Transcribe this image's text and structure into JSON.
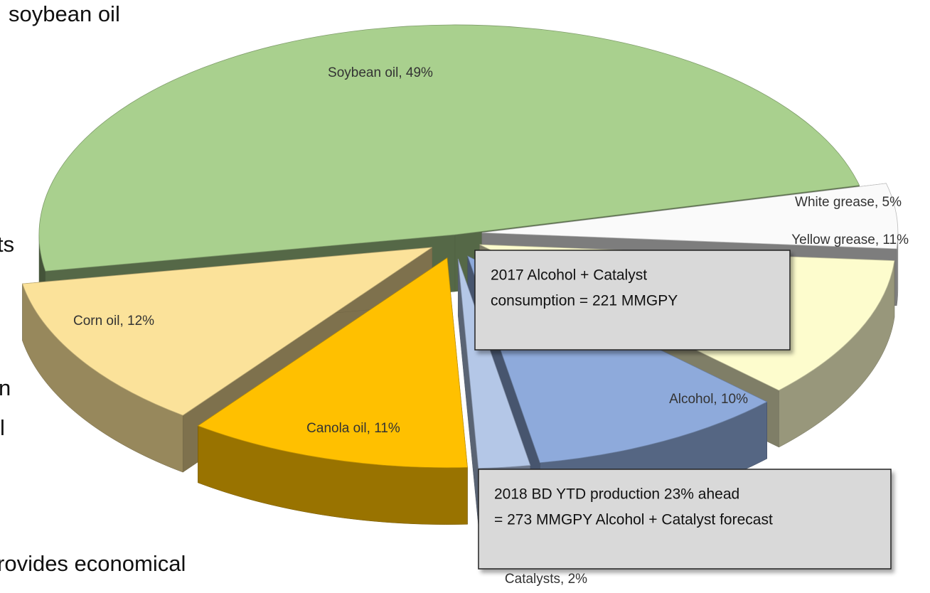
{
  "slide_text": [
    "soybean oil",
    "ts",
    "n",
    "l",
    "rovides economical"
  ],
  "chart_data": {
    "type": "pie",
    "values": [
      49,
      5,
      11,
      10,
      2,
      11,
      12
    ],
    "value_labels": [
      "Soybean oil, 49%",
      "White grease, 5%",
      "Yellow grease, 11%",
      "Alcohol, 10%",
      "Catalysts, 2%",
      "Canola oil, 11%",
      "Corn oil, 12%"
    ],
    "colors": [
      "#a9d08e",
      "#fafafa",
      "#fdfccd",
      "#8eaadb",
      "#b4c7e7",
      "#ffc000",
      "#fbe29a"
    ],
    "annotations": [
      [
        "2017 Alcohol + Catalyst",
        "consumption = 221 MMGPY"
      ],
      [
        "2018 BD YTD production 23% ahead",
        "= 273 MMGPY Alcohol + Catalyst forecast"
      ]
    ]
  }
}
